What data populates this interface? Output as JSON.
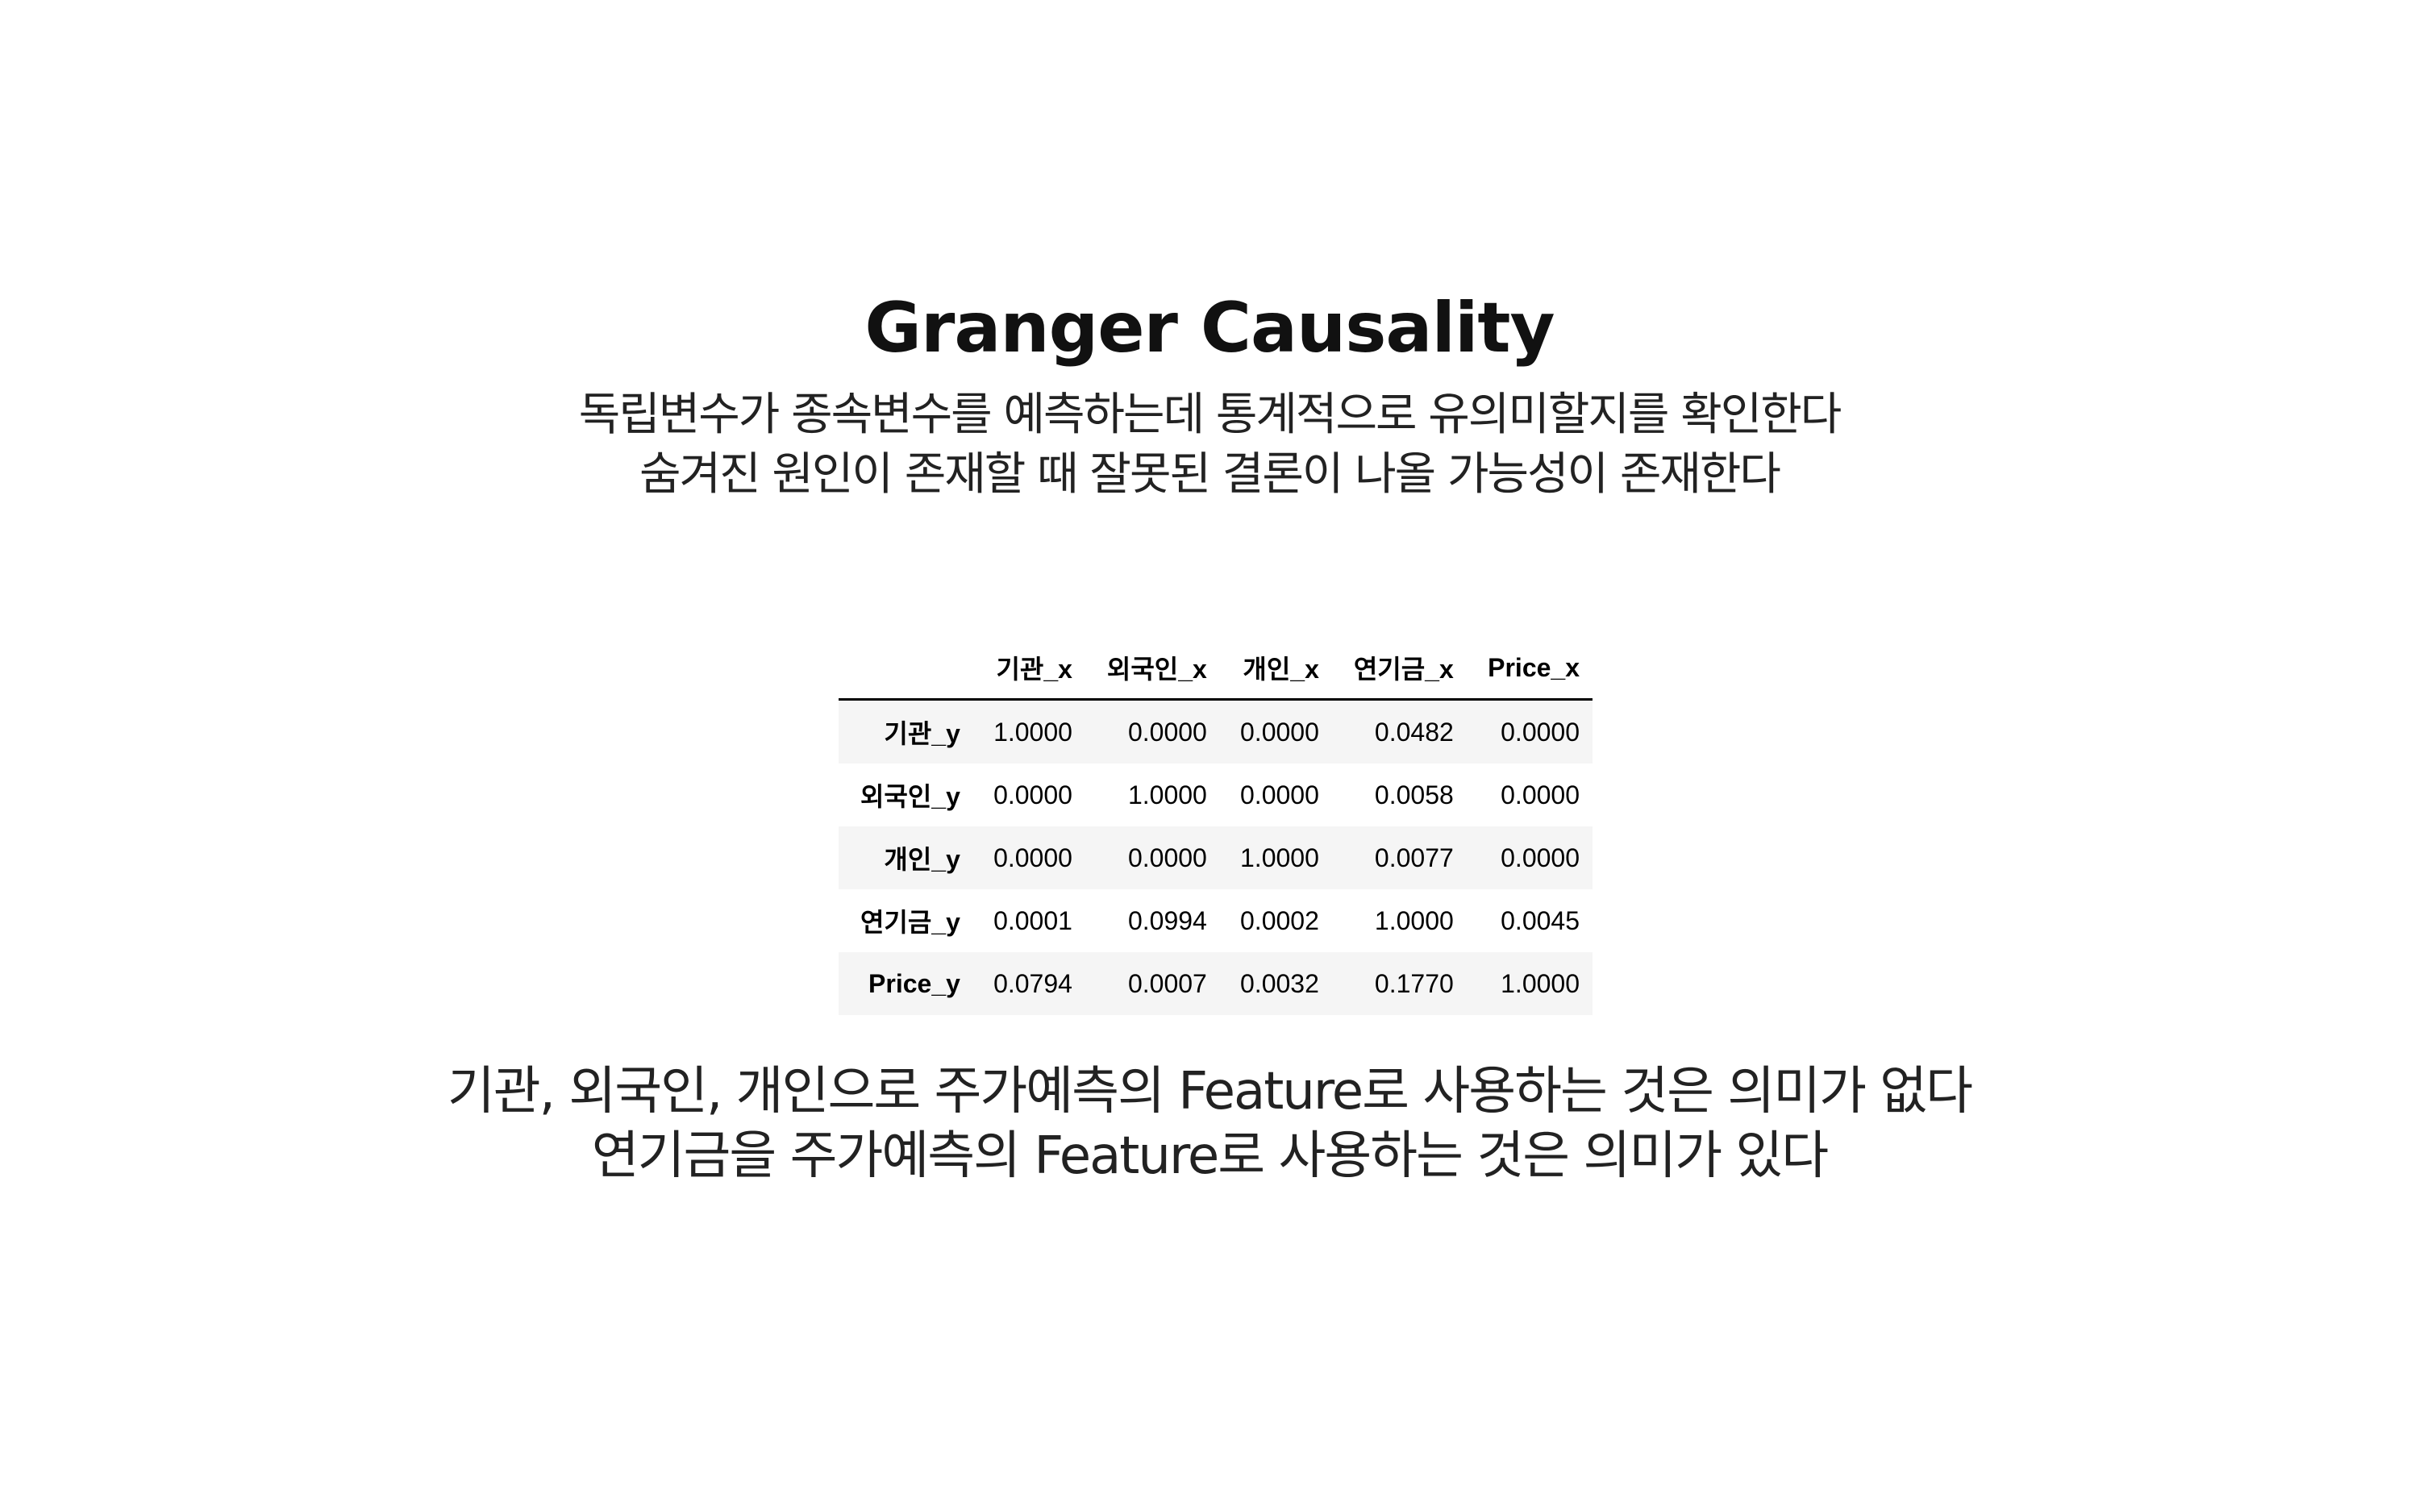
{
  "title": "Granger Causality",
  "subtitle": {
    "line1": "독립변수가 종속변수를 예측하는데 통계적으로 유의미할지를 확인한다",
    "line2": "숨겨진 원인이 존재할 때 잘못된 결론이 나올 가능성이 존재한다"
  },
  "table": {
    "columns": [
      "",
      "기관_x",
      "외국인_x",
      "개인_x",
      "연기금_x",
      "Price_x"
    ],
    "rows": [
      {
        "label": "기관_y",
        "values": [
          "1.0000",
          "0.0000",
          "0.0000",
          "0.0482",
          "0.0000"
        ]
      },
      {
        "label": "외국인_y",
        "values": [
          "0.0000",
          "1.0000",
          "0.0000",
          "0.0058",
          "0.0000"
        ]
      },
      {
        "label": "개인_y",
        "values": [
          "0.0000",
          "0.0000",
          "1.0000",
          "0.0077",
          "0.0000"
        ]
      },
      {
        "label": "연기금_y",
        "values": [
          "0.0001",
          "0.0994",
          "0.0002",
          "1.0000",
          "0.0045"
        ]
      },
      {
        "label": "Price_y",
        "values": [
          "0.0794",
          "0.0007",
          "0.0032",
          "0.1770",
          "1.0000"
        ]
      }
    ]
  },
  "conclusion": {
    "line1": "기관, 외국인, 개인으로 주가예측의 Feature로 사용하는 것은 의미가 없다",
    "line2": "연기금을 주가예측의 Feature로 사용하는 것은 의미가 있다"
  }
}
